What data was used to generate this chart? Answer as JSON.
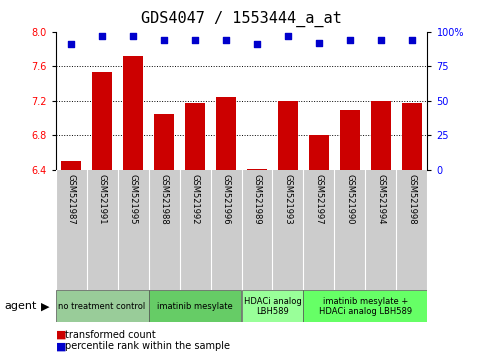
{
  "title": "GDS4047 / 1553444_a_at",
  "samples": [
    "GSM521987",
    "GSM521991",
    "GSM521995",
    "GSM521988",
    "GSM521992",
    "GSM521996",
    "GSM521989",
    "GSM521993",
    "GSM521997",
    "GSM521990",
    "GSM521994",
    "GSM521998"
  ],
  "bar_values": [
    6.5,
    7.54,
    7.72,
    7.05,
    7.18,
    7.25,
    6.41,
    7.2,
    6.8,
    7.1,
    7.2,
    7.18
  ],
  "percentile_values": [
    91,
    97,
    97,
    94,
    94,
    94,
    91,
    97,
    92,
    94,
    94,
    94
  ],
  "ylim": [
    6.4,
    8.0
  ],
  "yticks": [
    6.4,
    6.8,
    7.2,
    7.6,
    8.0
  ],
  "right_yticks": [
    0,
    25,
    50,
    75,
    100
  ],
  "right_ylim": [
    0,
    100
  ],
  "bar_color": "#cc0000",
  "dot_color": "#0000cc",
  "sample_label_bg": "#cccccc",
  "agent_group_colors": [
    "#99cc99",
    "#66cc66",
    "#99ff99",
    "#66ff66"
  ],
  "agent_group_labels": [
    "no treatment control",
    "imatinib mesylate",
    "HDACi analog\nLBH589",
    "imatinib mesylate +\nHDACi analog LBH589"
  ],
  "agent_group_starts": [
    0,
    3,
    6,
    8
  ],
  "agent_group_ends": [
    3,
    6,
    8,
    12
  ],
  "legend_bar_label": "transformed count",
  "legend_dot_label": "percentile rank within the sample",
  "title_fontsize": 11,
  "tick_fontsize": 7,
  "sample_fontsize": 6,
  "agent_fontsize": 6,
  "legend_fontsize": 7
}
